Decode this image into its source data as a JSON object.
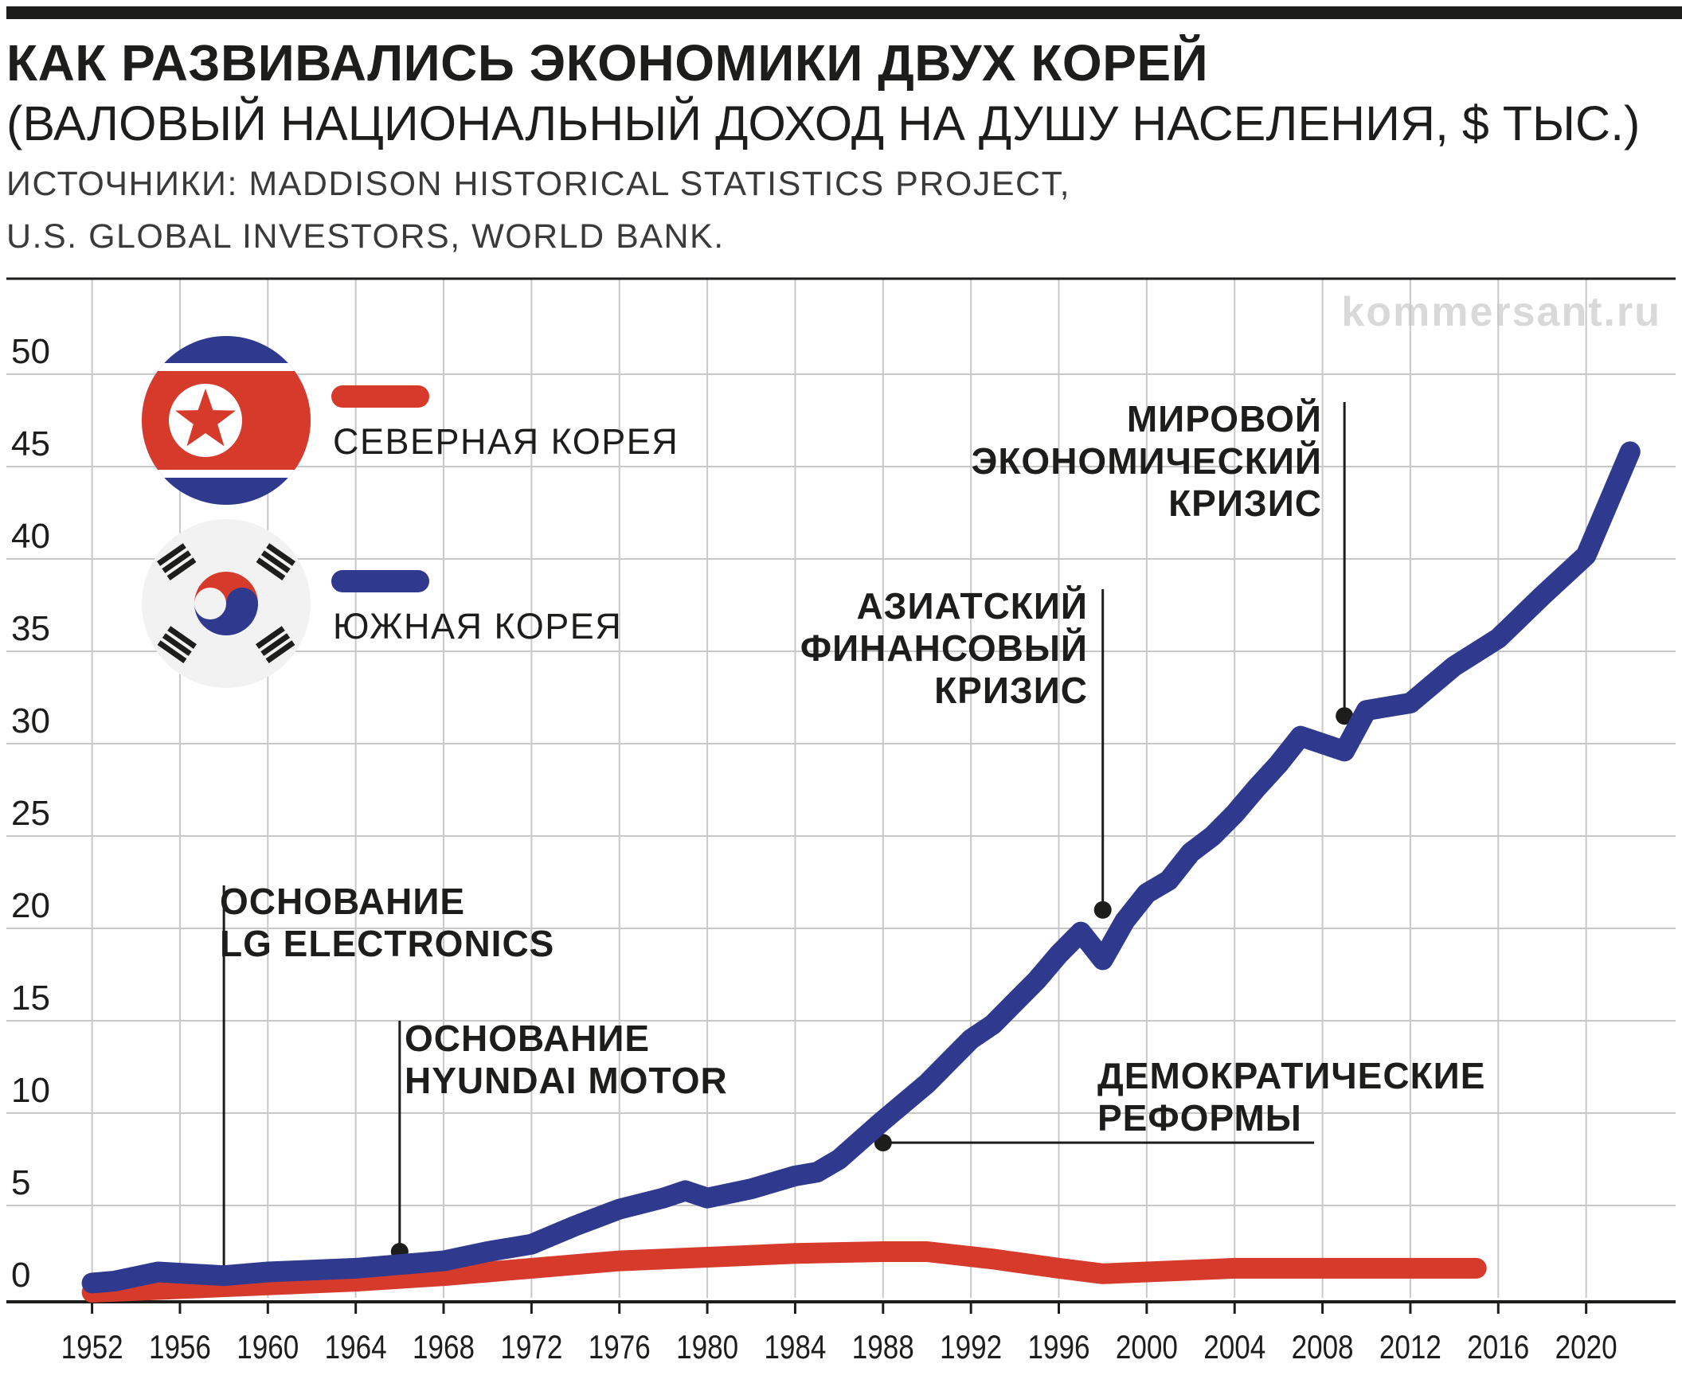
{
  "header": {
    "title": "КАК РАЗВИВАЛИСЬ ЭКОНОМИКИ ДВУХ КОРЕЙ",
    "subtitle": "(ВАЛОВЫЙ НАЦИОНАЛЬНЫЙ ДОХОД НА ДУШУ НАСЕЛЕНИЯ, $ ТЫС.)",
    "source_line1": "ИСТОЧНИКИ: MADDISON HISTORICAL STATISTICS PROJECT,",
    "source_line2": "U.S. GLOBAL INVESTORS, WORLD BANK."
  },
  "watermark": "kommersant.ru",
  "colors": {
    "north": "#d63a2b",
    "south": "#2f3a8f",
    "grid": "#c8c8c8",
    "axis": "#1d1d1b"
  },
  "chart_data": {
    "type": "line",
    "xlim": [
      1951,
      2024
    ],
    "ylim": [
      0,
      50
    ],
    "yticks": [
      0,
      5,
      10,
      15,
      20,
      25,
      30,
      35,
      40,
      45,
      50
    ],
    "xticks": [
      1952,
      1956,
      1960,
      1964,
      1968,
      1972,
      1976,
      1980,
      1984,
      1988,
      1992,
      1996,
      2000,
      2004,
      2008,
      2012,
      2016,
      2020
    ],
    "grid": true,
    "legend": "top-left",
    "series": [
      {
        "name": "СЕВЕРНАЯ КОРЕЯ",
        "color": "#d63a2b",
        "flag": "north-korea-flag",
        "points": [
          [
            1952,
            0.3
          ],
          [
            1956,
            0.5
          ],
          [
            1960,
            0.7
          ],
          [
            1964,
            0.9
          ],
          [
            1968,
            1.2
          ],
          [
            1972,
            1.6
          ],
          [
            1976,
            2.0
          ],
          [
            1980,
            2.2
          ],
          [
            1984,
            2.4
          ],
          [
            1988,
            2.5
          ],
          [
            1990,
            2.5
          ],
          [
            1993,
            2.1
          ],
          [
            1996,
            1.6
          ],
          [
            1998,
            1.3
          ],
          [
            2000,
            1.4
          ],
          [
            2004,
            1.6
          ],
          [
            2008,
            1.6
          ],
          [
            2012,
            1.6
          ],
          [
            2015,
            1.6
          ]
        ]
      },
      {
        "name": "ЮЖНАЯ КОРЕЯ",
        "color": "#2f3a8f",
        "flag": "south-korea-flag",
        "points": [
          [
            1952,
            0.8
          ],
          [
            1953,
            0.9
          ],
          [
            1955,
            1.4
          ],
          [
            1958,
            1.2
          ],
          [
            1960,
            1.4
          ],
          [
            1964,
            1.6
          ],
          [
            1967,
            1.9
          ],
          [
            1968,
            2.0
          ],
          [
            1970,
            2.5
          ],
          [
            1972,
            2.9
          ],
          [
            1974,
            3.9
          ],
          [
            1976,
            4.8
          ],
          [
            1978,
            5.4
          ],
          [
            1979,
            5.8
          ],
          [
            1980,
            5.4
          ],
          [
            1982,
            5.9
          ],
          [
            1984,
            6.6
          ],
          [
            1985,
            6.8
          ],
          [
            1986,
            7.5
          ],
          [
            1988,
            9.6
          ],
          [
            1990,
            11.6
          ],
          [
            1991,
            12.8
          ],
          [
            1992,
            14.0
          ],
          [
            1993,
            14.8
          ],
          [
            1995,
            17.2
          ],
          [
            1996,
            18.6
          ],
          [
            1997,
            19.8
          ],
          [
            1998,
            18.3
          ],
          [
            1999,
            20.4
          ],
          [
            2000,
            21.9
          ],
          [
            2001,
            22.6
          ],
          [
            2002,
            24.1
          ],
          [
            2003,
            25.0
          ],
          [
            2004,
            26.2
          ],
          [
            2005,
            27.6
          ],
          [
            2006,
            28.9
          ],
          [
            2007,
            30.4
          ],
          [
            2008,
            30.0
          ],
          [
            2009,
            29.6
          ],
          [
            2010,
            31.8
          ],
          [
            2011,
            32.0
          ],
          [
            2012,
            32.2
          ],
          [
            2014,
            34.2
          ],
          [
            2016,
            35.7
          ],
          [
            2018,
            38.0
          ],
          [
            2020,
            40.2
          ],
          [
            2022,
            45.8
          ]
        ]
      }
    ],
    "annotations": [
      {
        "lines": [
          "ОСНОВАНИЕ",
          "LG ELECTRONICS"
        ],
        "year": 1958,
        "value": 1.3
      },
      {
        "lines": [
          "ОСНОВАНИЕ",
          "HYUNDAI MOTOR"
        ],
        "year": 1966,
        "value": 2.5
      },
      {
        "lines": [
          "ДЕМОКРАТИЧЕСКИЕ",
          "РЕФОРМЫ"
        ],
        "year": 1988,
        "value": 8.4
      },
      {
        "lines": [
          "АЗИАТСКИЙ",
          "ФИНАНСОВЫЙ",
          "КРИЗИС"
        ],
        "year": 1998,
        "value": 21.0
      },
      {
        "lines": [
          "МИРОВОЙ",
          "ЭКОНОМИЧЕСКИЙ",
          "КРИЗИС"
        ],
        "year": 2009,
        "value": 31.5
      }
    ]
  }
}
